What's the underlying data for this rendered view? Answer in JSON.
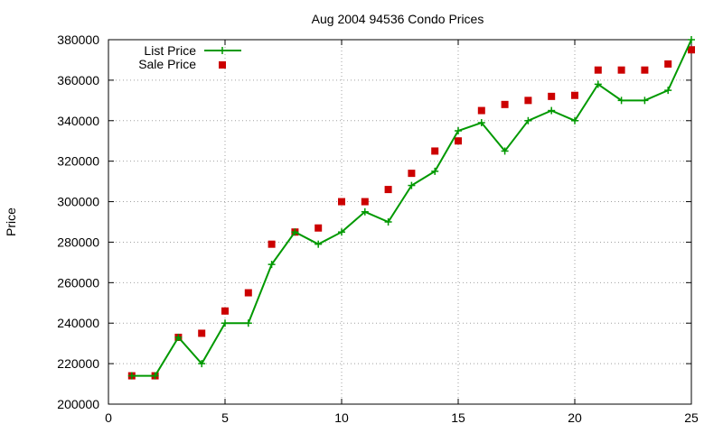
{
  "chart_data": {
    "type": "line",
    "title": "Aug 2004 94536 Condo Prices",
    "xlabel": "",
    "ylabel": "Price",
    "xlim": [
      0,
      25
    ],
    "ylim": [
      200000,
      380000
    ],
    "xticks": [
      0,
      5,
      10,
      15,
      20,
      25
    ],
    "yticks": [
      200000,
      220000,
      240000,
      260000,
      280000,
      300000,
      320000,
      340000,
      360000,
      380000
    ],
    "grid": true,
    "legend_position": "top-left",
    "x": [
      1,
      2,
      3,
      4,
      5,
      6,
      7,
      8,
      9,
      10,
      11,
      12,
      13,
      14,
      15,
      16,
      17,
      18,
      19,
      20,
      21,
      22,
      23,
      24,
      25
    ],
    "series": [
      {
        "name": "List Price",
        "style": "line+cross",
        "color": "#009900",
        "values": [
          214000,
          214000,
          233000,
          220000,
          240000,
          240000,
          269000,
          285000,
          279000,
          285000,
          295000,
          290000,
          308000,
          315000,
          335000,
          339000,
          325000,
          340000,
          345000,
          340000,
          358000,
          350000,
          350000,
          355000,
          380000
        ]
      },
      {
        "name": "Sale Price",
        "style": "square",
        "color": "#cc0000",
        "values": [
          214000,
          214000,
          233000,
          235000,
          246000,
          255000,
          279000,
          285000,
          287000,
          300000,
          300000,
          306000,
          314000,
          325000,
          330000,
          345000,
          348000,
          350000,
          352000,
          352500,
          365000,
          365000,
          365000,
          368000,
          375000
        ]
      }
    ]
  }
}
